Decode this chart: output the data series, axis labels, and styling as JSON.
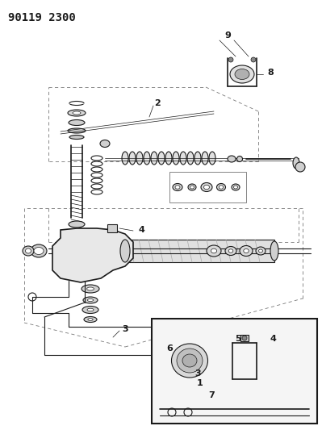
{
  "title": "90119 2300",
  "background_color": "#ffffff",
  "fig_width": 3.99,
  "fig_height": 5.33,
  "dpi": 100,
  "line_color": "#1a1a1a",
  "label_color": "#1a1a1a",
  "dash_color": "#555555",
  "title_fontsize": 10,
  "label_fontsize": 8
}
